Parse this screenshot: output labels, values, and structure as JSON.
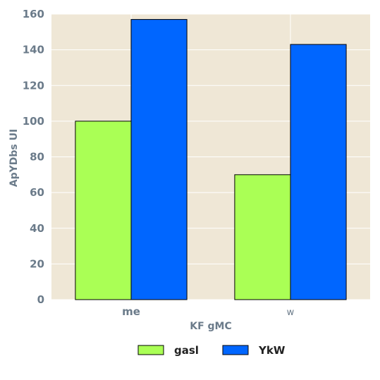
{
  "chart_data": {
    "type": "bar",
    "categories": [
      "me",
      "w"
    ],
    "series": [
      {
        "name": "gasl",
        "values": [
          100,
          70
        ],
        "color": "#aaff55"
      },
      {
        "name": "YkW",
        "values": [
          157,
          143
        ],
        "color": "#0066ff"
      }
    ],
    "xlabel": "KF gMC",
    "ylabel": "ApYDbs UI",
    "ylim": [
      0,
      160
    ],
    "yticks": [
      0,
      20,
      40,
      60,
      80,
      100,
      120,
      140,
      160
    ],
    "grid": true,
    "legend_position": "bottom-center",
    "background_color": "#efe7d6",
    "grid_color": "#ffffff"
  }
}
